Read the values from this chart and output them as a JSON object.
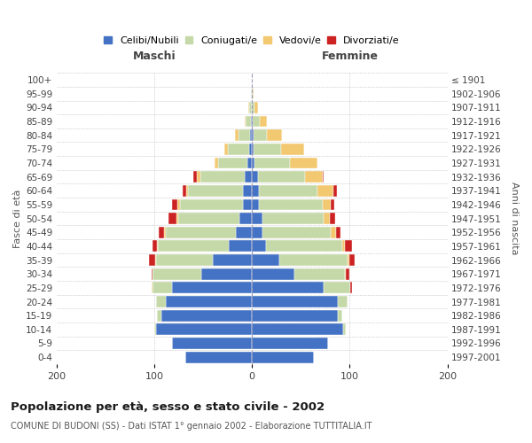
{
  "age_groups": [
    "0-4",
    "5-9",
    "10-14",
    "15-19",
    "20-24",
    "25-29",
    "30-34",
    "35-39",
    "40-44",
    "45-49",
    "50-54",
    "55-59",
    "60-64",
    "65-69",
    "70-74",
    "75-79",
    "80-84",
    "85-89",
    "90-94",
    "95-99",
    "100+"
  ],
  "birth_years": [
    "1997-2001",
    "1992-1996",
    "1987-1991",
    "1982-1986",
    "1977-1981",
    "1972-1976",
    "1967-1971",
    "1962-1966",
    "1957-1961",
    "1952-1956",
    "1947-1951",
    "1942-1946",
    "1937-1941",
    "1932-1936",
    "1927-1931",
    "1922-1926",
    "1917-1921",
    "1912-1916",
    "1907-1911",
    "1902-1906",
    "≤ 1901"
  ],
  "males_celibi": [
    68,
    82,
    98,
    93,
    88,
    82,
    52,
    40,
    24,
    16,
    13,
    9,
    9,
    7,
    5,
    3,
    2,
    1,
    0,
    0,
    0
  ],
  "males_coniugati": [
    0,
    0,
    2,
    4,
    10,
    20,
    50,
    58,
    72,
    72,
    62,
    65,
    56,
    46,
    30,
    22,
    12,
    5,
    3,
    1,
    0
  ],
  "males_vedovi": [
    0,
    0,
    0,
    0,
    0,
    1,
    0,
    1,
    1,
    2,
    2,
    2,
    2,
    3,
    3,
    3,
    3,
    1,
    1,
    0,
    0
  ],
  "males_divorziati": [
    0,
    0,
    0,
    0,
    0,
    0,
    1,
    6,
    5,
    5,
    8,
    6,
    4,
    4,
    0,
    0,
    0,
    0,
    0,
    0,
    0
  ],
  "females_nubili": [
    63,
    78,
    93,
    88,
    88,
    73,
    43,
    28,
    14,
    11,
    11,
    7,
    7,
    6,
    3,
    2,
    2,
    1,
    0,
    0,
    0
  ],
  "females_coniugate": [
    0,
    0,
    3,
    4,
    10,
    28,
    52,
    70,
    78,
    70,
    62,
    65,
    60,
    48,
    36,
    28,
    13,
    7,
    3,
    1,
    0
  ],
  "females_vedove": [
    0,
    0,
    0,
    0,
    0,
    0,
    1,
    2,
    3,
    5,
    7,
    9,
    16,
    18,
    28,
    23,
    16,
    7,
    3,
    1,
    0
  ],
  "females_divorziate": [
    0,
    0,
    0,
    0,
    0,
    1,
    4,
    5,
    7,
    5,
    5,
    3,
    4,
    1,
    0,
    0,
    0,
    0,
    0,
    0,
    0
  ],
  "color_celibi": "#4472C4",
  "color_coniugati": "#C5D9A8",
  "color_vedovi": "#F2C870",
  "color_divorziati": "#CC2222",
  "title": "Popolazione per età, sesso e stato civile - 2002",
  "subtitle": "COMUNE DI BUDONI (SS) - Dati ISTAT 1° gennaio 2002 - Elaborazione TUTTITALIA.IT",
  "label_maschi": "Maschi",
  "label_femmine": "Femmine",
  "ylabel_left": "Fasce di età",
  "ylabel_right": "Anni di nascita",
  "xlim": 200,
  "bg_color": "#ffffff",
  "grid_color": "#c8c8c8"
}
